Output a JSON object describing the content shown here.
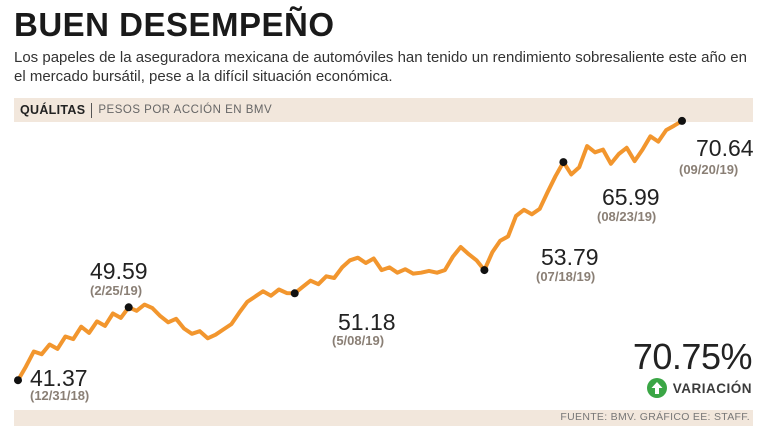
{
  "header": {
    "title": "BUEN DESEMPEÑO",
    "subtitle": "Los papeles de la aseguradora mexicana de automóviles han tenido un rendimiento sobresaliente este año en el mercado bursátil, pese a la difícil situación económica."
  },
  "band": {
    "company": "QUÁLITAS",
    "unit": "PESOS POR ACCIÓN EN BMV"
  },
  "chart_data": {
    "type": "line",
    "title": "",
    "xlabel": "",
    "ylabel": "",
    "x_range": [
      "12/31/18",
      "09/20/19"
    ],
    "ylim": [
      38,
      73
    ],
    "grid": false,
    "line_color": "#f2962e",
    "series": [
      {
        "name": "",
        "values": [
          41.37,
          42.9,
          44.6,
          44.3,
          45.4,
          44.9,
          46.3,
          46.0,
          47.4,
          46.7,
          48.0,
          47.5,
          48.9,
          48.4,
          49.59,
          49.2,
          49.9,
          49.5,
          48.6,
          47.9,
          48.3,
          47.2,
          46.6,
          46.9,
          46.1,
          46.5,
          47.1,
          47.7,
          49.0,
          50.2,
          50.8,
          51.4,
          50.9,
          51.6,
          51.2,
          51.18,
          51.9,
          52.6,
          52.2,
          53.1,
          52.9,
          54.1,
          54.9,
          55.2,
          54.6,
          55.1,
          53.8,
          54.1,
          53.5,
          53.9,
          53.4,
          53.5,
          53.7,
          53.5,
          53.8,
          55.3,
          56.4,
          55.6,
          54.9,
          53.79,
          55.8,
          57.1,
          57.6,
          59.9,
          60.6,
          60.1,
          60.7,
          62.6,
          64.4,
          65.99,
          64.6,
          65.4,
          67.8,
          67.1,
          67.4,
          65.8,
          66.9,
          67.6,
          66.1,
          67.4,
          68.9,
          68.3,
          69.6,
          70.1,
          70.64
        ],
        "points": [
          {
            "date": "(12/31/18)",
            "value": 41.37
          },
          {
            "date": "(2/25/19)",
            "value": 49.59
          },
          {
            "date": "(5/08/19)",
            "value": 51.18
          },
          {
            "date": "(07/18/19)",
            "value": 53.79
          },
          {
            "date": "(08/23/19)",
            "value": 65.99
          },
          {
            "date": "(09/20/19)",
            "value": 70.64
          }
        ]
      }
    ],
    "annotations": [
      {
        "value_text": "41.37",
        "date_text": "(12/31/18)"
      },
      {
        "value_text": "49.59",
        "date_text": "(2/25/19)"
      },
      {
        "value_text": "51.18",
        "date_text": "(5/08/19)"
      },
      {
        "value_text": "53.79",
        "date_text": "(07/18/19)"
      },
      {
        "value_text": "65.99",
        "date_text": "(08/23/19)"
      },
      {
        "value_text": "70.64",
        "date_text": "(09/20/19)"
      }
    ]
  },
  "variation": {
    "value": "70.75%",
    "label": "VARIACIÓN",
    "icon": "up-arrow-icon",
    "color": "#3aa645"
  },
  "footer": {
    "source": "FUENTE: BMV. GRÁFICO EE: STAFF."
  }
}
